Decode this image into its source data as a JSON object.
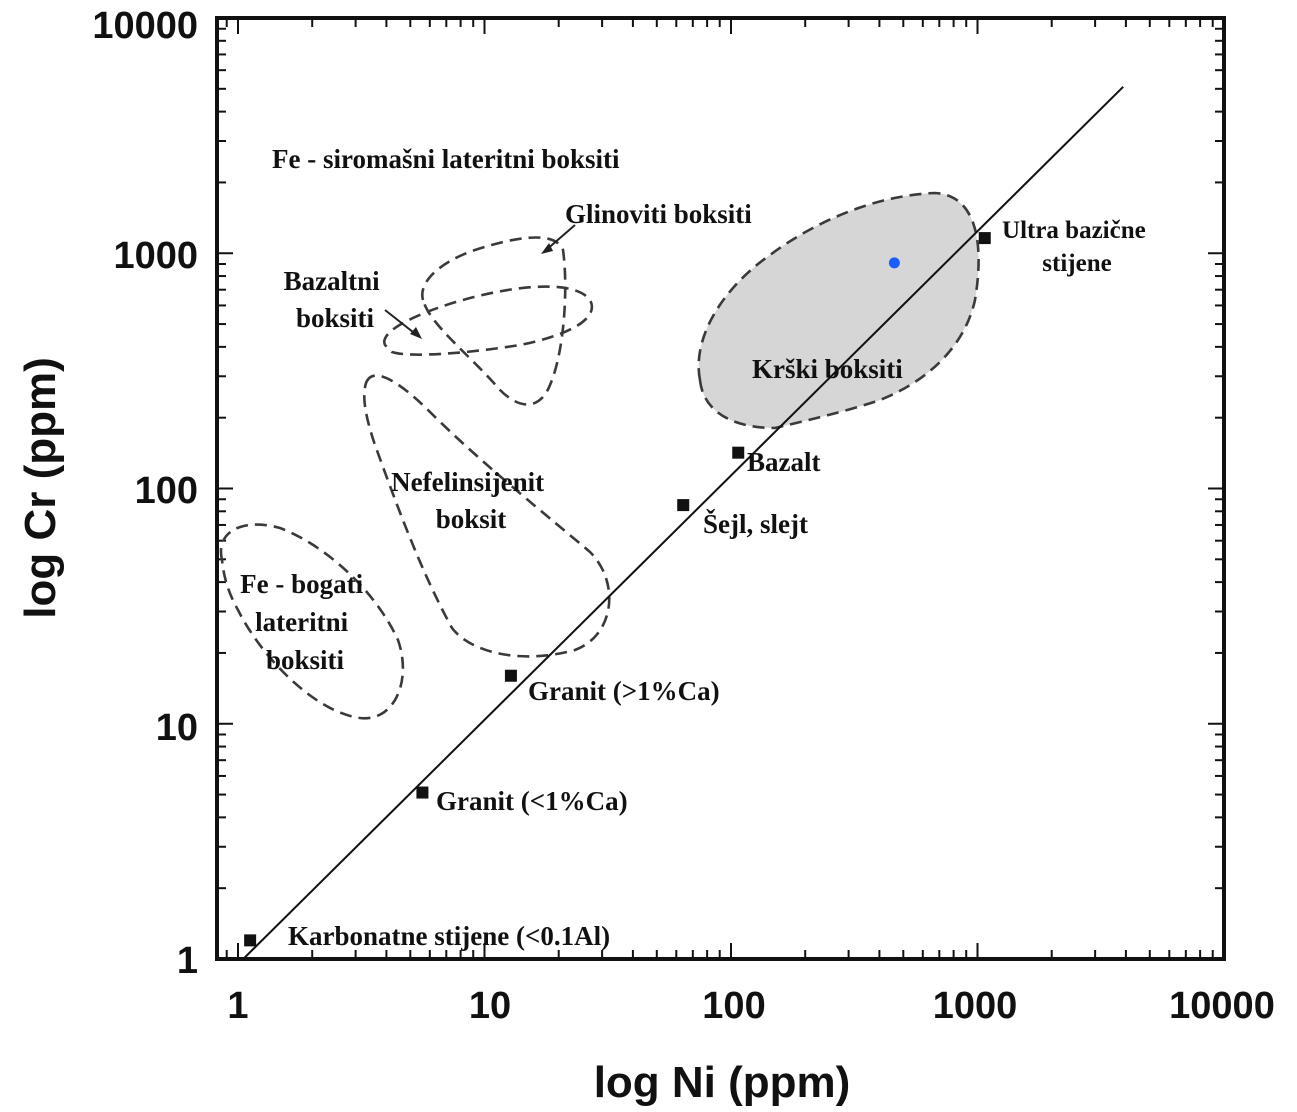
{
  "chart_data": {
    "type": "scatter",
    "xlabel": "log Ni (ppm)",
    "ylabel": "log Cr (ppm)",
    "x_scale": "log",
    "y_scale": "log",
    "xlim": [
      0.8,
      10000
    ],
    "ylim": [
      1,
      10000
    ],
    "x_ticks": [
      {
        "value": 1,
        "label": "1"
      },
      {
        "value": 10,
        "label": "10"
      },
      {
        "value": 100,
        "label": "100"
      },
      {
        "value": 1000,
        "label": "1000"
      },
      {
        "value": 10000,
        "label": "10000"
      }
    ],
    "y_ticks": [
      {
        "value": 1,
        "label": "1"
      },
      {
        "value": 10,
        "label": "10"
      },
      {
        "value": 100,
        "label": "100"
      },
      {
        "value": 1000,
        "label": "1000"
      },
      {
        "value": 10000,
        "label": "10000"
      }
    ],
    "reference_line": {
      "x": [
        1.05,
        3900
      ],
      "y": [
        1,
        5100
      ]
    },
    "reference_points": [
      {
        "name": "Karbonatne stijene (<0.1Al)",
        "x": 1.12,
        "y": 1.2
      },
      {
        "name": "Granit (<1%Ca)",
        "x": 5.6,
        "y": 5.1
      },
      {
        "name": "Granit (>1%Ca)",
        "x": 12.8,
        "y": 16
      },
      {
        "name": "Šejl, slejt",
        "x": 64,
        "y": 85
      },
      {
        "name": "Bazalt",
        "x": 107,
        "y": 142
      },
      {
        "name": "Ultra bazične stijene",
        "x": 1070,
        "y": 1160
      }
    ],
    "sample_points": [
      {
        "x": 460,
        "y": 910,
        "color": "#1a5cff"
      }
    ],
    "regions": [
      {
        "name": "Fe - bogati lateritni boksiti",
        "filled": false
      },
      {
        "name": "Nefelinsijenit boksit",
        "filled": false
      },
      {
        "name": "Bazaltni boksiti",
        "filled": false
      },
      {
        "name": "Glinoviti boksiti",
        "filled": false
      },
      {
        "name": "Krški boksiti",
        "filled": true
      },
      {
        "name": "Fe - siromašni lateritni boksiti",
        "filled": false
      }
    ],
    "colors": {
      "marker": "#111111",
      "region_fill": "#d6d6d6",
      "sample": "#1a5cff"
    },
    "grid": false,
    "legend": "none"
  }
}
